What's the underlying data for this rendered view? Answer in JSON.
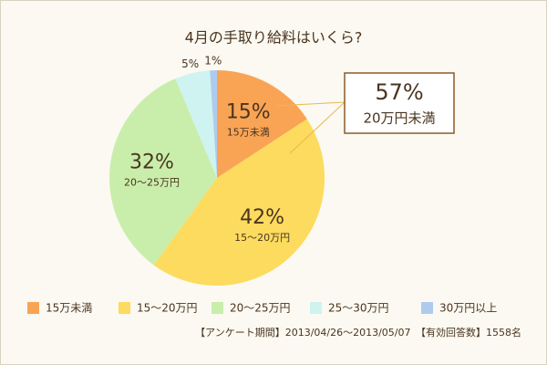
{
  "chart_data": {
    "type": "pie",
    "title": "4月の手取り給料はいくら?",
    "categories": [
      "15万未満",
      "15〜20万円",
      "20〜25万円",
      "25〜30万円",
      "30万円以上"
    ],
    "values": [
      15,
      42,
      32,
      5,
      1
    ],
    "value_labels": [
      "15%",
      "42%",
      "32%",
      "5%",
      "1%"
    ],
    "colors": [
      "#f9a455",
      "#fcdb5e",
      "#c9eeab",
      "#cff3f0",
      "#aecbef"
    ],
    "legend": "bottom",
    "callout": {
      "value_label": "57%",
      "label": "20万円未満"
    },
    "note": "【アンケート期間】2013/04/26〜2013/05/07　【有効回答数】1558名"
  }
}
